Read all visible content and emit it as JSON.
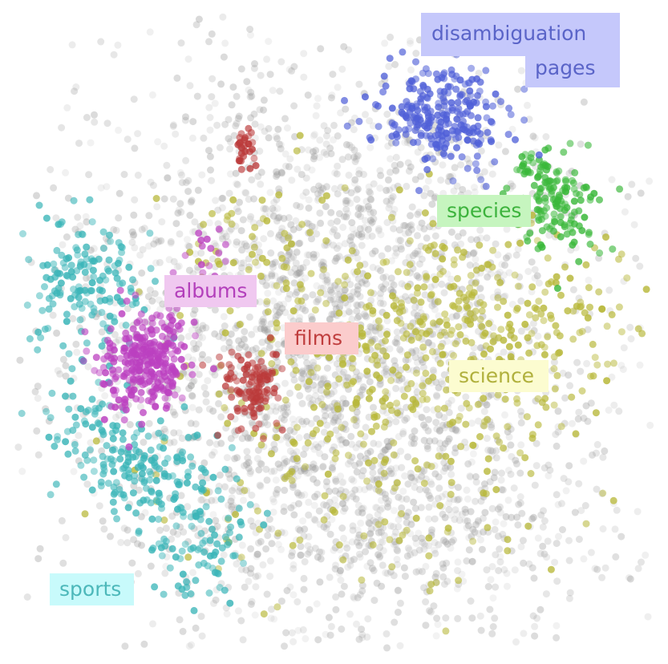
{
  "chart_data": {
    "type": "scatter",
    "title": "",
    "xlabel": "",
    "ylabel": "",
    "grid": false,
    "legend": "none; category labels placed inside the plot next to their clusters",
    "xlim": [
      0,
      100
    ],
    "ylim": [
      0,
      100
    ],
    "background_color": "#999999",
    "categories": [
      {
        "key": "disambiguation",
        "label_lines": [
          "disambiguation",
          "pages"
        ],
        "color": "#5060d8",
        "label_color": "#5a64c8",
        "label_bg": "#c5c8fb",
        "clusters": [
          {
            "cx": 67,
            "cy": 84,
            "sx": 5.0,
            "sy": 4.2,
            "n": 260
          }
        ]
      },
      {
        "key": "species",
        "label_lines": [
          "species"
        ],
        "color": "#3ab83a",
        "label_color": "#3db33d",
        "label_bg": "#c6f5bf",
        "clusters": [
          {
            "cx": 85,
            "cy": 70,
            "sx": 3.5,
            "sy": 4.0,
            "n": 120
          },
          {
            "cx": 82,
            "cy": 76,
            "sx": 2.2,
            "sy": 1.8,
            "n": 40
          }
        ]
      },
      {
        "key": "albums",
        "label_lines": [
          "albums"
        ],
        "color": "#bb40c0",
        "label_color": "#b33fbb",
        "label_bg": "#f0c8f0",
        "clusters": [
          {
            "cx": 20,
            "cy": 45,
            "sx": 3.2,
            "sy": 4.2,
            "n": 300
          },
          {
            "cx": 30,
            "cy": 62,
            "sx": 3.5,
            "sy": 2.5,
            "n": 20
          }
        ]
      },
      {
        "key": "films",
        "label_lines": [
          "films"
        ],
        "color": "#bb3a3a",
        "label_color": "#c03e3e",
        "label_bg": "#fbcccc",
        "clusters": [
          {
            "cx": 37,
            "cy": 41,
            "sx": 2.5,
            "sy": 3.5,
            "n": 110
          },
          {
            "cx": 36,
            "cy": 79,
            "sx": 0.8,
            "sy": 2.0,
            "n": 30
          }
        ]
      },
      {
        "key": "science",
        "label_lines": [
          "science"
        ],
        "color": "#b8b83a",
        "label_color": "#b0b03c",
        "label_bg": "#fcfcd0",
        "clusters": [
          {
            "cx": 70,
            "cy": 50,
            "sx": 15.0,
            "sy": 9.0,
            "n": 420
          },
          {
            "cx": 55,
            "cy": 30,
            "sx": 15.0,
            "sy": 12.0,
            "n": 180
          },
          {
            "cx": 38,
            "cy": 62,
            "sx": 8.0,
            "sy": 8.0,
            "n": 60
          }
        ]
      },
      {
        "key": "sports",
        "label_lines": [
          "sports"
        ],
        "color": "#3ab5b8",
        "label_color": "#4cb8ba",
        "label_bg": "#c8fafb",
        "clusters": [
          {
            "cx": 11,
            "cy": 57,
            "sx": 5.0,
            "sy": 6.0,
            "n": 160
          },
          {
            "cx": 20,
            "cy": 28,
            "sx": 5.0,
            "sy": 4.0,
            "n": 140
          },
          {
            "cx": 29,
            "cy": 18,
            "sx": 4.0,
            "sy": 5.0,
            "n": 100
          },
          {
            "cx": 10,
            "cy": 35,
            "sx": 3.0,
            "sy": 3.5,
            "n": 50
          }
        ]
      },
      {
        "key": "other",
        "label_lines": [],
        "color": "#999999",
        "clusters": [
          {
            "cx": 50,
            "cy": 50,
            "sx": 20.0,
            "sy": 22.0,
            "n": 2600
          },
          {
            "cx": 60,
            "cy": 20,
            "sx": 18.0,
            "sy": 8.0,
            "n": 500
          }
        ]
      }
    ],
    "labels": {
      "disambiguation_1": "disambiguation",
      "disambiguation_2": "pages",
      "species": "species",
      "albums": "albums",
      "films": "films",
      "science": "science",
      "sports": "sports"
    }
  }
}
